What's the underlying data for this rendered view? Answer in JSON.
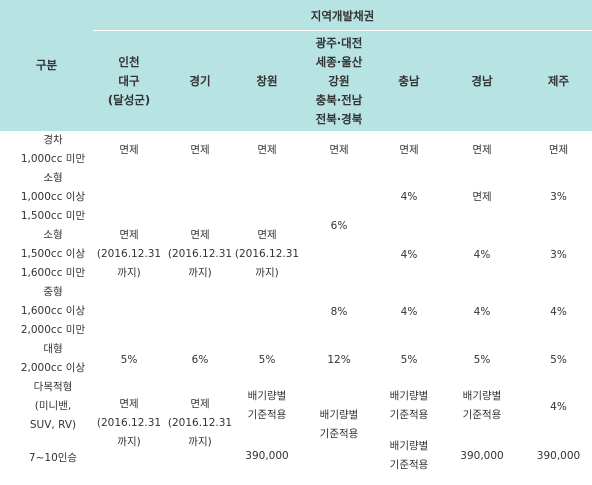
{
  "header": {
    "group_title": "지역개발채권",
    "category": "구분",
    "regions": [
      [
        "인천",
        "대구",
        "(달성군)"
      ],
      [
        "경기"
      ],
      [
        "창원"
      ],
      [
        "광주·대전",
        "세종·울산",
        "강원",
        "충북·전남",
        "전북·경북"
      ],
      [
        "충남"
      ],
      [
        "경남"
      ],
      [
        "제주"
      ]
    ]
  },
  "categories": [
    [
      "경차",
      "1,000cc 미만"
    ],
    [
      "소형",
      "1,000cc 이상",
      "1,500cc 미만"
    ],
    [
      "소형",
      "1,500cc 이상",
      "1,600cc 미만"
    ],
    [
      "중형",
      "1,600cc 이상",
      "2,000cc 미만"
    ],
    [
      "대형",
      "2,000cc 이상"
    ],
    [
      "다목적형",
      "(미니밴,",
      "SUV, RV)"
    ],
    [
      "7~10인승"
    ]
  ],
  "values": {
    "r1": [
      "면제",
      "면제",
      "면제",
      "면제",
      "면제",
      "면제",
      "면제"
    ],
    "r2": [
      "4%",
      "면제",
      "3%"
    ],
    "exempt_until": [
      "면제",
      "(2016.12.31",
      "까지)"
    ],
    "gwangju_small_mid": "6%",
    "r3": [
      "4%",
      "4%",
      "3%"
    ],
    "r4": [
      "8%",
      "4%",
      "4%",
      "4%"
    ],
    "r5": [
      "5%",
      "6%",
      "5%",
      "12%",
      "5%",
      "5%",
      "5%"
    ],
    "displacement_standard": [
      "배기량별",
      "기준적용"
    ],
    "r6_jeju": "4%",
    "r7_price": "390,000"
  }
}
